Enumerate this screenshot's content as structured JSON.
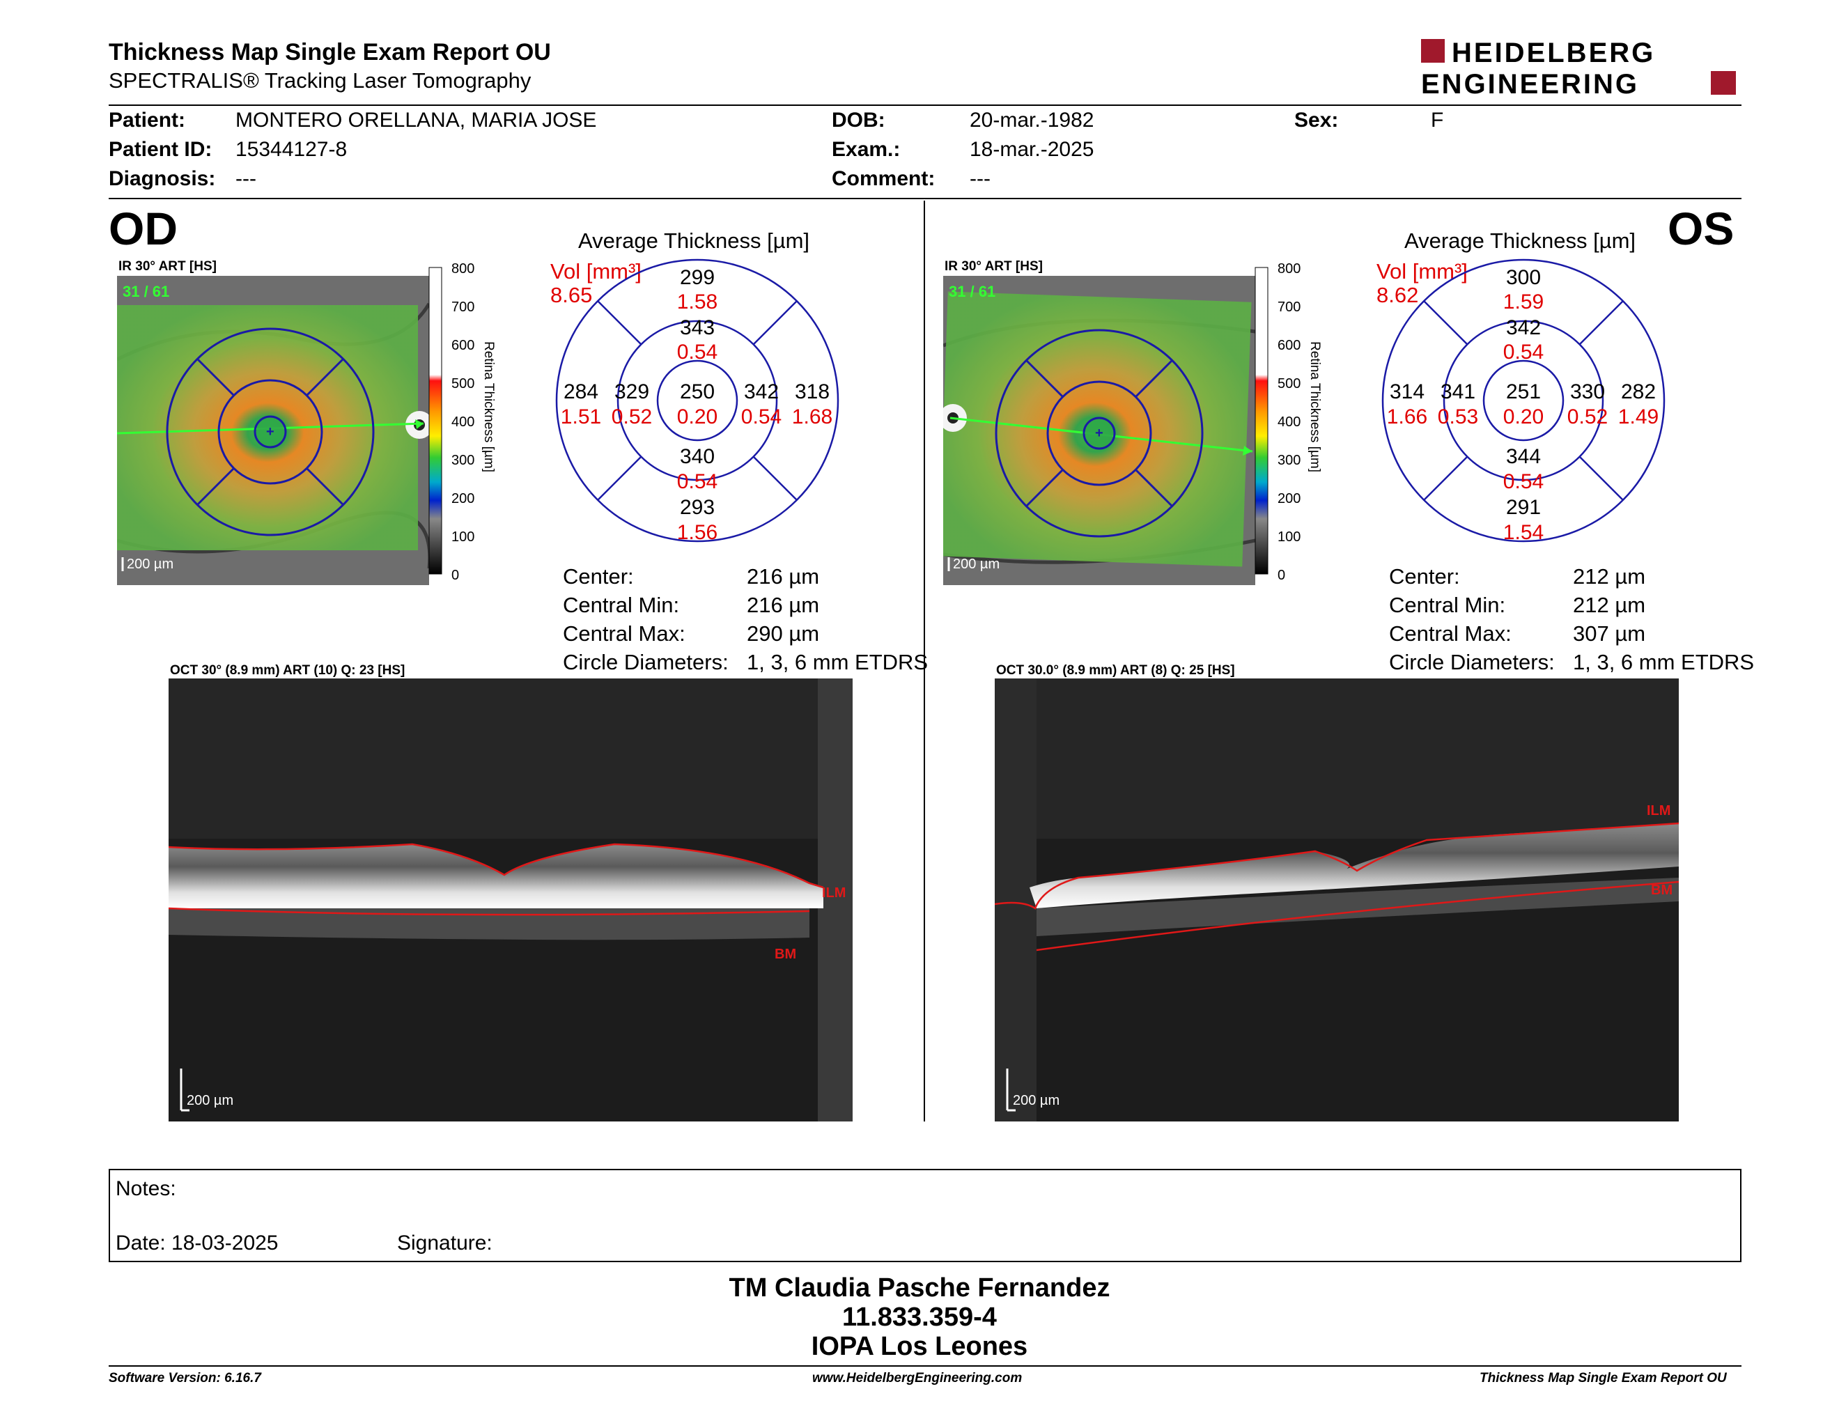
{
  "header": {
    "title": "Thickness Map Single Exam Report OU",
    "subtitle": "SPECTRALIS® Tracking Laser Tomography",
    "logo_line1": "HEIDELBERG",
    "logo_line2": "ENGINEERING"
  },
  "patient": {
    "patient_label": "Patient:",
    "patient_value": "MONTERO ORELLANA, MARIA JOSE",
    "id_label": "Patient ID:",
    "id_value": "15344127-8",
    "diagnosis_label": "Diagnosis:",
    "diagnosis_value": "---",
    "dob_label": "DOB:",
    "dob_value": "20-mar.-1982",
    "exam_label": "Exam.:",
    "exam_value": "18-mar.-2025",
    "comment_label": "Comment:",
    "comment_value": "---",
    "sex_label": "Sex:",
    "sex_value": "F"
  },
  "scale": {
    "ticks": [
      "800",
      "700",
      "600",
      "500",
      "400",
      "300",
      "200",
      "100",
      "0"
    ],
    "label": "Retina  Thickness [µm]"
  },
  "od": {
    "eye": "OD",
    "ir_header": "IR 30° ART [HS]",
    "frame_counter": "31 / 61",
    "ir_scale": "200 µm",
    "avg_title": "Average Thickness [µm]",
    "vol_label": "Vol [mm³]",
    "vol_value": "8.65",
    "grid": {
      "center": {
        "t": "250",
        "v": "0.20"
      },
      "inner_sup": {
        "t": "343",
        "v": "0.54"
      },
      "inner_inf": {
        "t": "340",
        "v": "0.54"
      },
      "inner_left": {
        "t": "329",
        "v": "0.52"
      },
      "inner_right": {
        "t": "342",
        "v": "0.54"
      },
      "outer_sup": {
        "t": "299",
        "v": "1.58"
      },
      "outer_inf": {
        "t": "293",
        "v": "1.56"
      },
      "outer_left": {
        "t": "284",
        "v": "1.51"
      },
      "outer_right": {
        "t": "318",
        "v": "1.68"
      }
    },
    "stats": {
      "center_label": "Center:",
      "center_value": "216 µm",
      "min_label": "Central Min:",
      "min_value": "216 µm",
      "max_label": "Central Max:",
      "max_value": "290 µm",
      "diam_label": "Circle Diameters:",
      "diam_value": "1, 3, 6 mm ETDRS"
    },
    "oct_header": "OCT 30° (8.9 mm) ART (10) Q: 23 [HS]",
    "oct_scale": "200 µm",
    "ilm": "ILM",
    "bm": "BM"
  },
  "os": {
    "eye": "OS",
    "ir_header": "IR 30° ART [HS]",
    "frame_counter": "31 / 61",
    "ir_scale": "200 µm",
    "avg_title": "Average Thickness [µm]",
    "vol_label": "Vol [mm³]",
    "vol_value": "8.62",
    "grid": {
      "center": {
        "t": "251",
        "v": "0.20"
      },
      "inner_sup": {
        "t": "342",
        "v": "0.54"
      },
      "inner_inf": {
        "t": "344",
        "v": "0.54"
      },
      "inner_left": {
        "t": "341",
        "v": "0.53"
      },
      "inner_right": {
        "t": "330",
        "v": "0.52"
      },
      "outer_sup": {
        "t": "300",
        "v": "1.59"
      },
      "outer_inf": {
        "t": "291",
        "v": "1.54"
      },
      "outer_left": {
        "t": "314",
        "v": "1.66"
      },
      "outer_right": {
        "t": "282",
        "v": "1.49"
      }
    },
    "stats": {
      "center_label": "Center:",
      "center_value": "212 µm",
      "min_label": "Central Min:",
      "min_value": "212 µm",
      "max_label": "Central Max:",
      "max_value": "307 µm",
      "diam_label": "Circle Diameters:",
      "diam_value": "1, 3, 6 mm ETDRS"
    },
    "oct_header": "OCT 30.0° (8.9 mm) ART (8) Q: 25 [HS]",
    "oct_scale": "200 µm",
    "ilm": "ILM",
    "bm": "BM"
  },
  "notes": {
    "notes_label": "Notes:",
    "date_label": "Date: 18-03-2025",
    "signature_label": "Signature:"
  },
  "signature_block": {
    "name": "TM Claudia Pasche Fernandez",
    "rut": "11.833.359-4",
    "org": "IOPA Los Leones"
  },
  "footer": {
    "software": "Software Version: 6.16.7",
    "website": "www.HeidelbergEngineering.com",
    "report": "Thickness Map Single Exam Report OU"
  },
  "colors": {
    "accent_red": "#a0192c",
    "etdrs_blue": "#1a1aa6",
    "volume_red": "#e00000",
    "ilm_red": "#e01818"
  }
}
